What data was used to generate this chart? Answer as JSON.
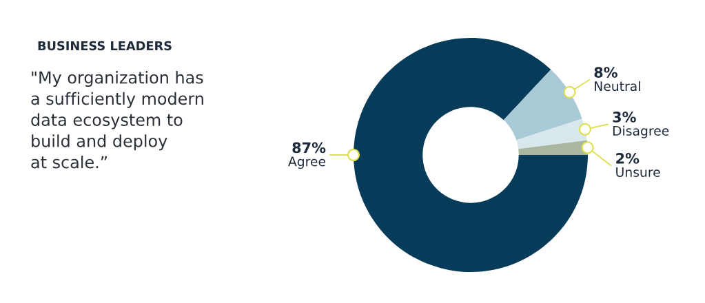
{
  "chart_data": {
    "type": "donut",
    "title": "BUSINESS LEADERS",
    "subtitle": "\"My organization has\na sufficiently modern\ndata ecosystem to\nbuild and deploy\nat scale.”",
    "categories": [
      "Agree",
      "Neutral",
      "Disagree",
      "Unsure"
    ],
    "values": [
      87,
      8,
      3,
      2
    ],
    "colors": [
      "#063b59",
      "#a8cad6",
      "#d8e8ec",
      "#a9b7a0"
    ],
    "value_labels": [
      "87%",
      "8%",
      "3%",
      "2%"
    ]
  }
}
